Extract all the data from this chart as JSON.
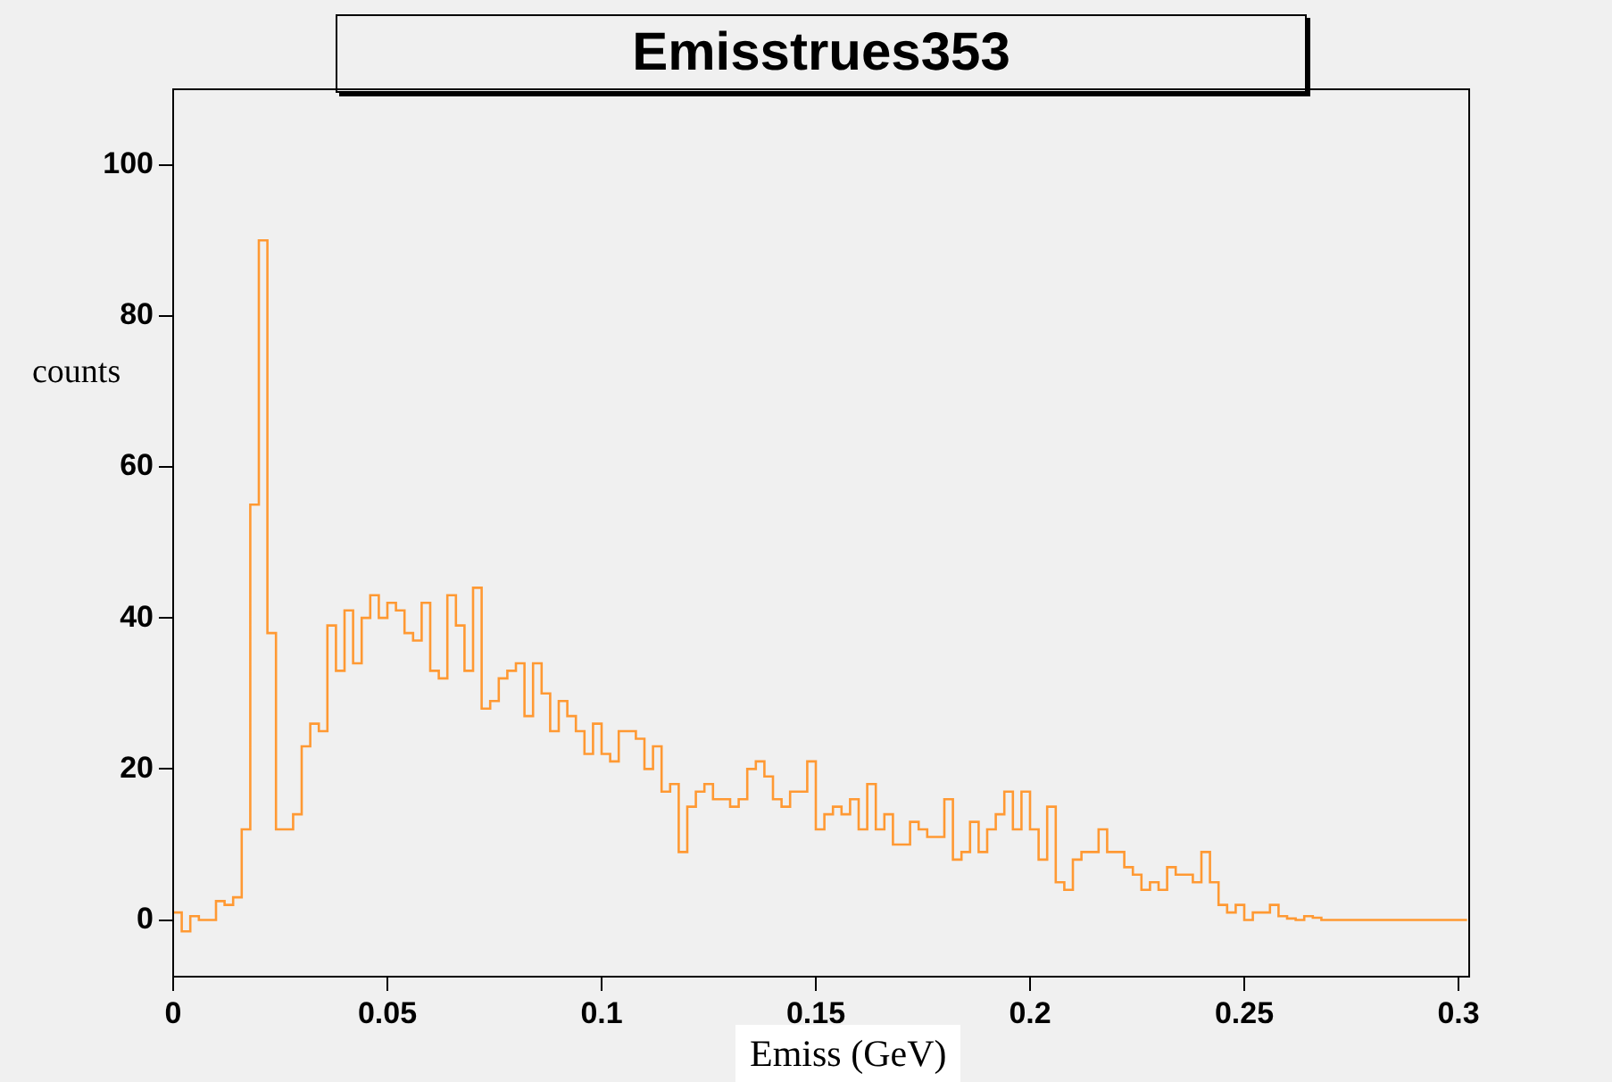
{
  "chart_data": {
    "type": "histogram",
    "title": "Emisstrues353",
    "xlabel": "Emiss (GeV)",
    "ylabel": "counts",
    "color": "#ff9933",
    "bins": [
      0,
      0.002,
      0.004,
      0.006,
      0.008,
      0.01,
      0.012,
      0.014,
      0.016,
      0.018,
      0.02,
      0.022,
      0.024,
      0.026,
      0.028,
      0.03,
      0.032,
      0.034,
      0.036,
      0.038,
      0.04,
      0.042,
      0.044,
      0.046,
      0.048,
      0.05,
      0.052,
      0.054,
      0.056,
      0.058,
      0.06,
      0.062,
      0.064,
      0.066,
      0.068,
      0.07,
      0.072,
      0.074,
      0.076,
      0.078,
      0.08,
      0.082,
      0.084,
      0.086,
      0.088,
      0.09,
      0.092,
      0.094,
      0.096,
      0.098,
      0.1,
      0.102,
      0.104,
      0.106,
      0.108,
      0.11,
      0.112,
      0.114,
      0.116,
      0.118,
      0.12,
      0.122,
      0.124,
      0.126,
      0.128,
      0.13,
      0.132,
      0.134,
      0.136,
      0.138,
      0.14,
      0.142,
      0.144,
      0.146,
      0.148,
      0.15,
      0.152,
      0.154,
      0.156,
      0.158,
      0.16,
      0.162,
      0.164,
      0.166,
      0.168,
      0.17,
      0.172,
      0.174,
      0.176,
      0.178,
      0.18,
      0.182,
      0.184,
      0.186,
      0.188,
      0.19,
      0.192,
      0.194,
      0.196,
      0.198,
      0.2,
      0.202,
      0.204,
      0.206,
      0.208,
      0.21,
      0.212,
      0.214,
      0.216,
      0.218,
      0.22,
      0.222,
      0.224,
      0.226,
      0.228,
      0.23,
      0.232,
      0.234,
      0.236,
      0.238,
      0.24,
      0.242,
      0.244,
      0.246,
      0.248,
      0.25,
      0.252,
      0.254,
      0.256,
      0.258,
      0.26,
      0.262,
      0.264,
      0.266,
      0.268,
      0.27,
      0.272,
      0.274,
      0.276,
      0.278,
      0.28,
      0.282,
      0.284,
      0.286,
      0.288,
      0.29,
      0.292,
      0.294,
      0.296,
      0.298,
      0.3,
      0.302
    ],
    "values": [
      1,
      -1.5,
      0.5,
      0,
      0,
      2.5,
      2,
      3,
      12,
      55,
      90,
      38,
      12,
      12,
      14,
      23,
      26,
      25,
      39,
      33,
      41,
      34,
      40,
      43,
      40,
      42,
      41,
      38,
      37,
      42,
      33,
      32,
      43,
      39,
      33,
      44,
      28,
      29,
      32,
      33,
      34,
      27,
      34,
      30,
      25,
      29,
      27,
      25,
      22,
      26,
      22,
      21,
      25,
      25,
      24,
      20,
      23,
      17,
      18,
      9,
      15,
      17,
      18,
      16,
      16,
      15,
      16,
      20,
      21,
      19,
      16,
      15,
      17,
      17,
      21,
      12,
      14,
      15,
      14,
      16,
      12,
      18,
      12,
      14,
      10,
      10,
      13,
      12,
      11,
      11,
      16,
      8,
      9,
      13,
      9,
      12,
      14,
      17,
      12,
      17,
      12,
      8,
      15,
      5,
      4,
      8,
      9,
      9,
      12,
      9,
      9,
      7,
      6,
      4,
      5,
      4,
      7,
      6,
      6,
      5,
      9,
      5,
      2,
      1,
      2,
      0,
      1,
      1,
      2,
      0.5,
      0.2,
      0,
      0.5,
      0.3,
      0,
      0,
      0,
      0,
      0,
      0,
      0,
      0,
      0,
      0,
      0,
      0,
      0,
      0,
      0,
      0,
      0
    ],
    "xlim": [
      0,
      0.3025
    ],
    "xticks": [
      0,
      0.05,
      0.1,
      0.15,
      0.2,
      0.25,
      0.3
    ],
    "ylim": [
      -7.5,
      110
    ],
    "yticks": [
      0,
      20,
      40,
      60,
      80,
      100
    ],
    "grid": false,
    "legend": false
  }
}
